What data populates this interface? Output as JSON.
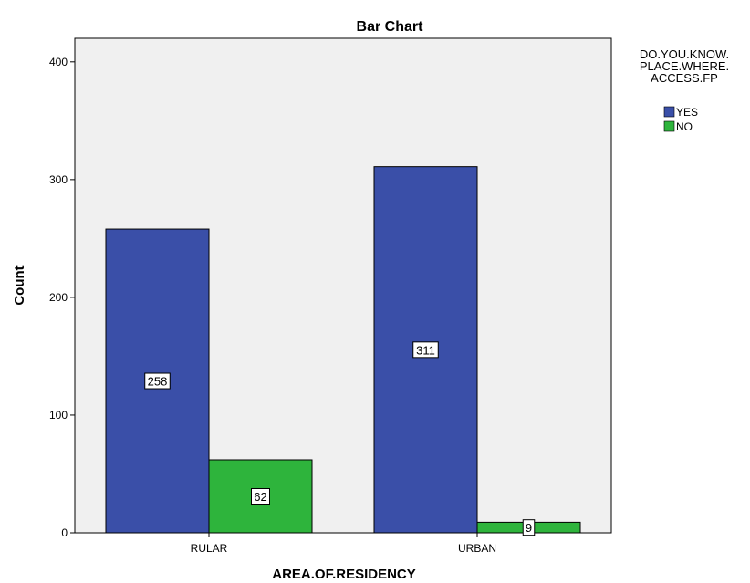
{
  "chart_data": {
    "type": "bar",
    "title": "Bar Chart",
    "xlabel": "AREA.OF.RESIDENCY",
    "ylabel": "Count",
    "categories": [
      "RULAR",
      "URBAN"
    ],
    "series": [
      {
        "name": "YES",
        "values": [
          258,
          311
        ],
        "color": "#3a4fa8"
      },
      {
        "name": "NO",
        "values": [
          62,
          9
        ],
        "color": "#2eb43c"
      }
    ],
    "ylim": [
      0,
      420
    ],
    "yticks": [
      0,
      100,
      200,
      300,
      400
    ],
    "legend": {
      "title_lines": [
        "DO.YOU.KNOW.",
        "PLACE.WHERE.",
        "ACCESS.FP"
      ],
      "placement": "right"
    },
    "plot_background": "#f0f0f0",
    "grid": false
  }
}
